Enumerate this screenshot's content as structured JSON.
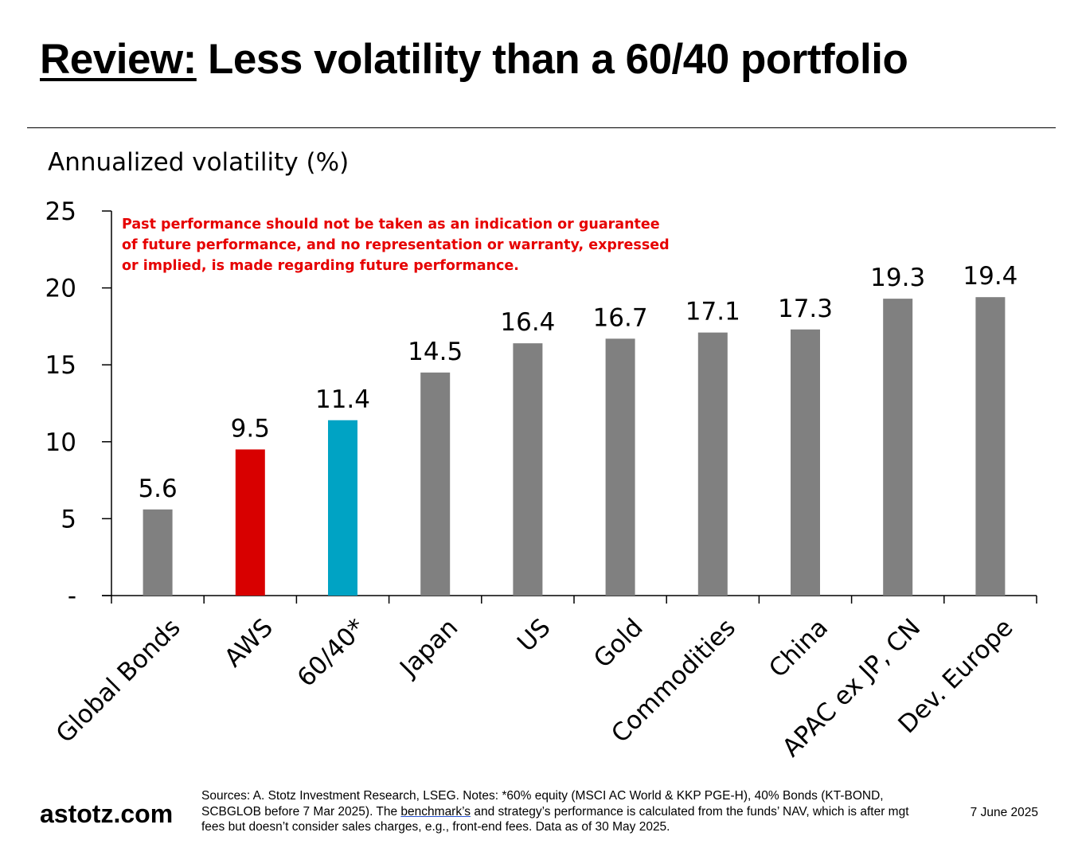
{
  "title": {
    "prefix": "Review:",
    "text": "Less volatility than a 60/40 portfolio"
  },
  "chart_data": {
    "type": "bar",
    "title": "",
    "ylabel": "Annualized volatility (%)",
    "xlabel": "",
    "categories": [
      "Global Bonds",
      "AWS",
      "60/40*",
      "Japan",
      "US",
      "Gold",
      "Commodities",
      "China",
      "APAC ex JP, CN",
      "Dev. Europe"
    ],
    "values": [
      5.6,
      9.5,
      11.4,
      14.5,
      16.4,
      16.7,
      17.1,
      17.3,
      19.3,
      19.4
    ],
    "value_labels": [
      "5.6",
      "9.5",
      "11.4",
      "14.5",
      "16.4",
      "16.7",
      "17.1",
      "17.3",
      "19.3",
      "19.4"
    ],
    "bar_colors": [
      "#808080",
      "#d80000",
      "#00a3c4",
      "#808080",
      "#808080",
      "#808080",
      "#808080",
      "#808080",
      "#808080",
      "#808080"
    ],
    "ylim": [
      0,
      25
    ],
    "yticks": [
      0,
      5,
      10,
      15,
      20,
      25
    ],
    "ytick_labels": [
      "-",
      "5",
      "10",
      "15",
      "20",
      "25"
    ],
    "grid": false,
    "disclaimer": [
      "Past performance should not be taken as an indication or guarantee",
      "of future performance, and no representation or warranty, expressed",
      "or implied, is made regarding future performance."
    ],
    "disclaimer_color": "#e60000"
  },
  "footer": {
    "brand": "astotz.com",
    "notes_before_link": "Sources: A. Stotz Investment Research, LSEG. Notes: *60% equity (MSCI AC World & KKP PGE-H), 40% Bonds (KT-BOND, SCBGLOB before 7 Mar 2025). The ",
    "notes_link": "benchmark’s",
    "notes_after_link": " and strategy’s performance is calculated from the funds’ NAV, which is after mgt fees but doesn’t consider sales charges, e.g., front-end fees. Data as of 30 May 2025.",
    "date": "7 June 2025"
  }
}
